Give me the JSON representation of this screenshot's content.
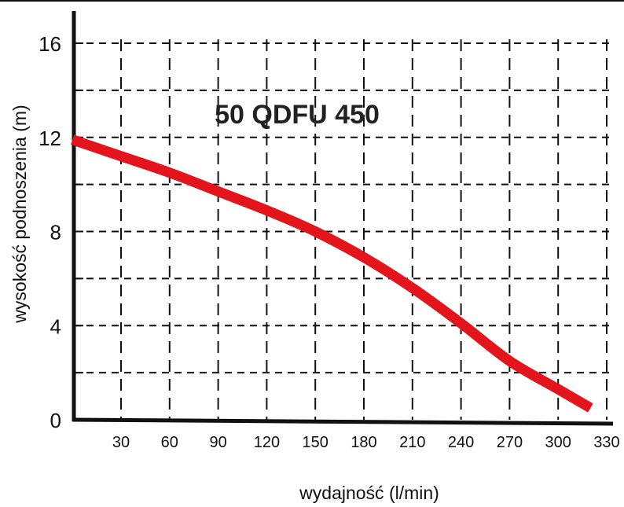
{
  "chart_data": {
    "type": "line",
    "title": "50 QDFU 450",
    "xlabel": "wydajność (l/min)",
    "ylabel": "wysokość podnoszenia (m)",
    "x_ticks": [
      "30",
      "60",
      "90",
      "120",
      "150",
      "180",
      "210",
      "240",
      "270",
      "300",
      "330"
    ],
    "y_ticks": [
      "0",
      "4",
      "8",
      "12",
      "16"
    ],
    "xlim": [
      0,
      330
    ],
    "ylim": [
      0,
      16
    ],
    "grid": true,
    "series": [
      {
        "color": "#e3141c",
        "x": [
          0,
          30,
          60,
          90,
          120,
          150,
          180,
          210,
          240,
          270,
          300,
          320
        ],
        "y": [
          11.9,
          11.2,
          10.5,
          9.7,
          8.9,
          8.0,
          6.9,
          5.6,
          4.1,
          2.5,
          1.3,
          0.5
        ]
      }
    ]
  }
}
